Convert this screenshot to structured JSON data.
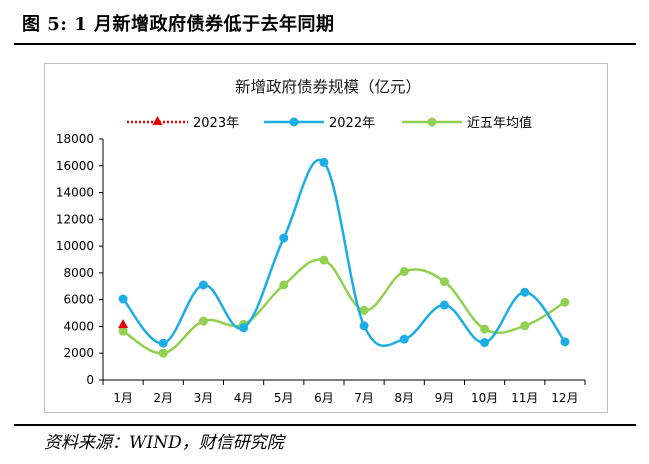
{
  "figure": {
    "label": "图 5:  1 月新增政府债券低于去年同期",
    "source": "资料来源：WIND，财信研究院"
  },
  "chart_data": {
    "type": "line",
    "title": "新增政府债券规模（亿元）",
    "xlabel": "",
    "ylabel": "",
    "categories": [
      "1月",
      "2月",
      "3月",
      "4月",
      "5月",
      "6月",
      "7月",
      "8月",
      "9月",
      "10月",
      "11月",
      "12月"
    ],
    "ylim": [
      0,
      18000
    ],
    "yticks": [
      0,
      2000,
      4000,
      6000,
      8000,
      10000,
      12000,
      14000,
      16000,
      18000
    ],
    "grid": false,
    "legend_position": "top",
    "series": [
      {
        "name": "2023年",
        "color": "#e60000",
        "marker": "triangle",
        "style": "dotted",
        "values": [
          4100,
          null,
          null,
          null,
          null,
          null,
          null,
          null,
          null,
          null,
          null,
          null
        ]
      },
      {
        "name": "2022年",
        "color": "#1cade4",
        "marker": "circle",
        "style": "solid",
        "values": [
          6050,
          2750,
          7100,
          3900,
          10600,
          16250,
          4050,
          3050,
          5600,
          2800,
          6550,
          2850
        ]
      },
      {
        "name": "近五年均值",
        "color": "#92d050",
        "marker": "circle",
        "style": "solid",
        "values": [
          3650,
          2000,
          4400,
          4150,
          7100,
          8950,
          5200,
          8100,
          7350,
          3800,
          4050,
          5800
        ]
      }
    ]
  }
}
